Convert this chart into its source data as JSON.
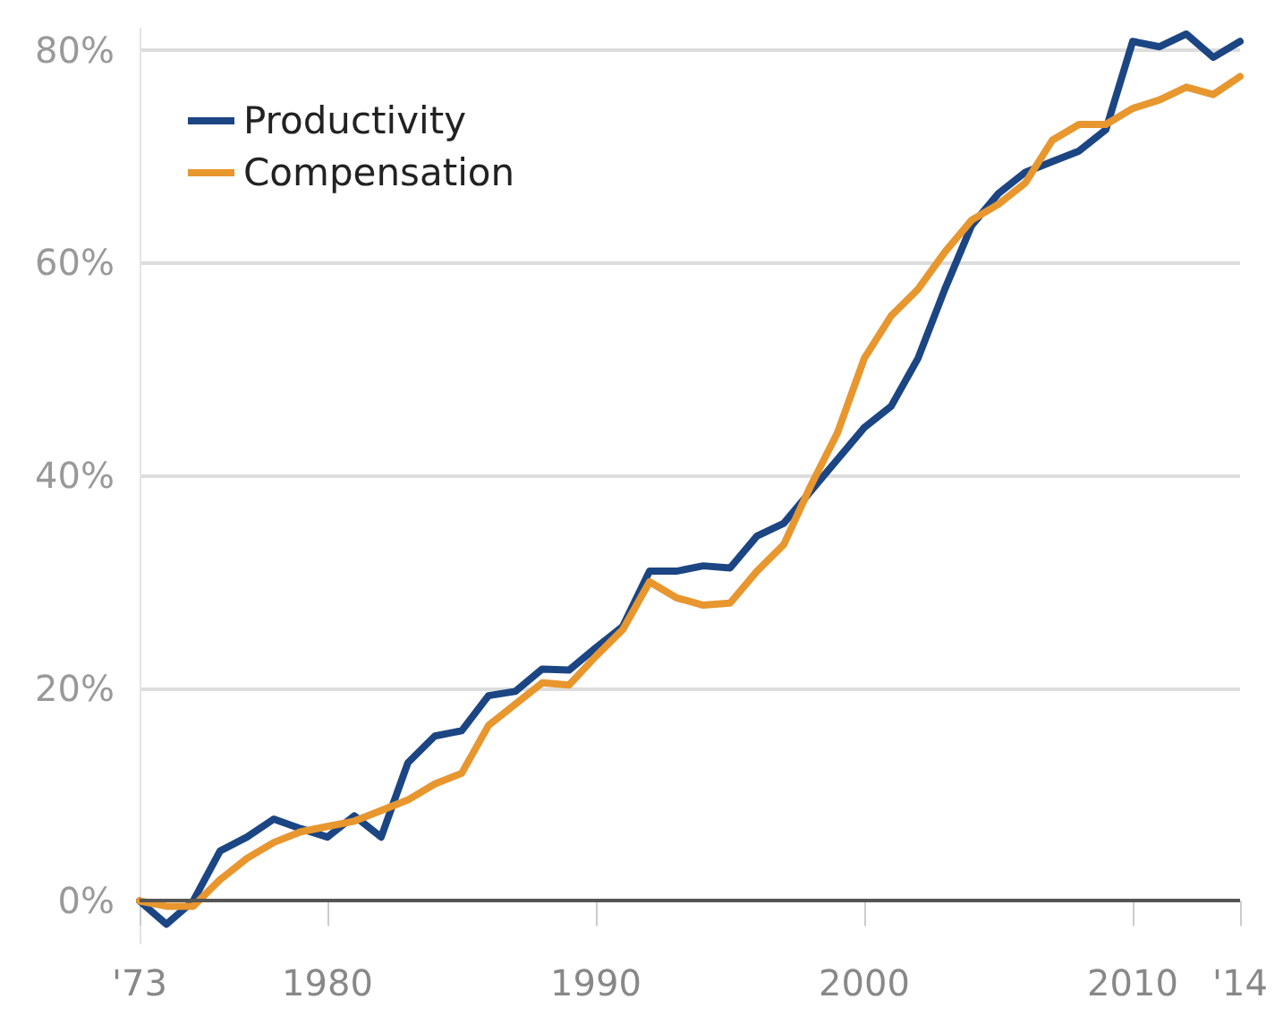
{
  "chart_data": {
    "type": "line",
    "x": [
      1973,
      1974,
      1975,
      1976,
      1977,
      1978,
      1979,
      1980,
      1981,
      1982,
      1983,
      1984,
      1985,
      1986,
      1987,
      1988,
      1989,
      1990,
      1991,
      1992,
      1993,
      1994,
      1995,
      1996,
      1997,
      1998,
      1999,
      2000,
      2001,
      2002,
      2003,
      2004,
      2005,
      2006,
      2007,
      2008,
      2009,
      2010,
      2011,
      2012,
      2013,
      2014
    ],
    "series": [
      {
        "name": "Productivity",
        "color": "#1b4583",
        "values": [
          0,
          -2.2,
          0,
          4.7,
          6,
          7.7,
          6.8,
          6,
          8,
          6,
          13,
          15.5,
          16,
          19.3,
          19.7,
          21.8,
          21.7,
          23.8,
          25.8,
          31,
          31,
          31.5,
          31.3,
          34.3,
          35.5,
          38.5,
          41.5,
          44.5,
          46.5,
          51,
          57.5,
          63.5,
          66.5,
          68.5,
          69.5,
          70.5,
          72.5,
          80.8,
          80.3,
          81.5,
          79.3,
          80.8
        ]
      },
      {
        "name": "Compensation",
        "color": "#e8962e",
        "values": [
          0,
          -0.5,
          -0.5,
          2,
          4,
          5.5,
          6.5,
          7,
          7.5,
          8.5,
          9.5,
          11,
          12,
          16.5,
          18.5,
          20.5,
          20.3,
          23,
          25.5,
          30,
          28.5,
          27.8,
          28,
          31,
          33.5,
          39,
          44,
          51,
          55,
          57.5,
          61,
          64,
          65.5,
          67.5,
          71.5,
          73,
          73,
          74.5,
          75.3,
          76.5,
          75.8,
          77.5
        ]
      }
    ],
    "xlim": [
      1973,
      2014
    ],
    "xticks": [
      {
        "value": 1973,
        "label": "'73"
      },
      1980,
      1990,
      2000,
      2010,
      {
        "value": 2014,
        "label": "'14"
      }
    ],
    "ylim": [
      -4,
      82
    ],
    "yticks": [
      {
        "value": 0,
        "label": "0%"
      },
      {
        "value": 20,
        "label": "20%"
      },
      {
        "value": 40,
        "label": "40%"
      },
      {
        "value": 60,
        "label": "60%"
      },
      {
        "value": 80,
        "label": "80%"
      }
    ],
    "grid": "y",
    "legend": "top left",
    "marker": "none",
    "line_style": "solid"
  }
}
